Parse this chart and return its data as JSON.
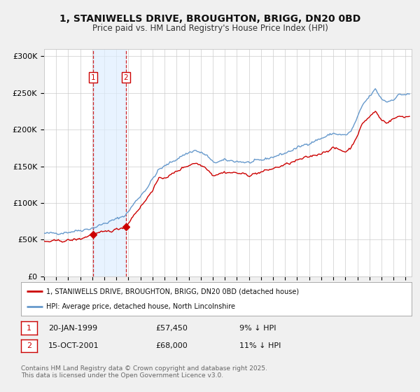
{
  "title": "1, STANIWELLS DRIVE, BROUGHTON, BRIGG, DN20 0BD",
  "subtitle": "Price paid vs. HM Land Registry's House Price Index (HPI)",
  "legend_house": "1, STANIWELLS DRIVE, BROUGHTON, BRIGG, DN20 0BD (detached house)",
  "legend_hpi": "HPI: Average price, detached house, North Lincolnshire",
  "footnote": "Contains HM Land Registry data © Crown copyright and database right 2025.\nThis data is licensed under the Open Government Licence v3.0.",
  "purchase1_date": "20-JAN-1999",
  "purchase1_price": "£57,450",
  "purchase1_hpi": "9% ↓ HPI",
  "purchase1_year": 1999.05,
  "purchase1_value": 57450,
  "purchase2_date": "15-OCT-2001",
  "purchase2_price": "£68,000",
  "purchase2_hpi": "11% ↓ HPI",
  "purchase2_year": 2001.79,
  "purchase2_value": 68000,
  "house_color": "#cc0000",
  "hpi_color": "#6699cc",
  "shading_color": "#ddeeff",
  "marker_color": "#cc0000",
  "ylim": [
    0,
    310000
  ],
  "yticks": [
    0,
    50000,
    100000,
    150000,
    200000,
    250000,
    300000
  ],
  "ytick_labels": [
    "£0",
    "£50K",
    "£100K",
    "£150K",
    "£200K",
    "£250K",
    "£300K"
  ],
  "background_color": "#f0f0f0",
  "plot_bg_color": "#ffffff",
  "grid_color": "#cccccc",
  "title_fontsize": 10,
  "subtitle_fontsize": 8.5
}
